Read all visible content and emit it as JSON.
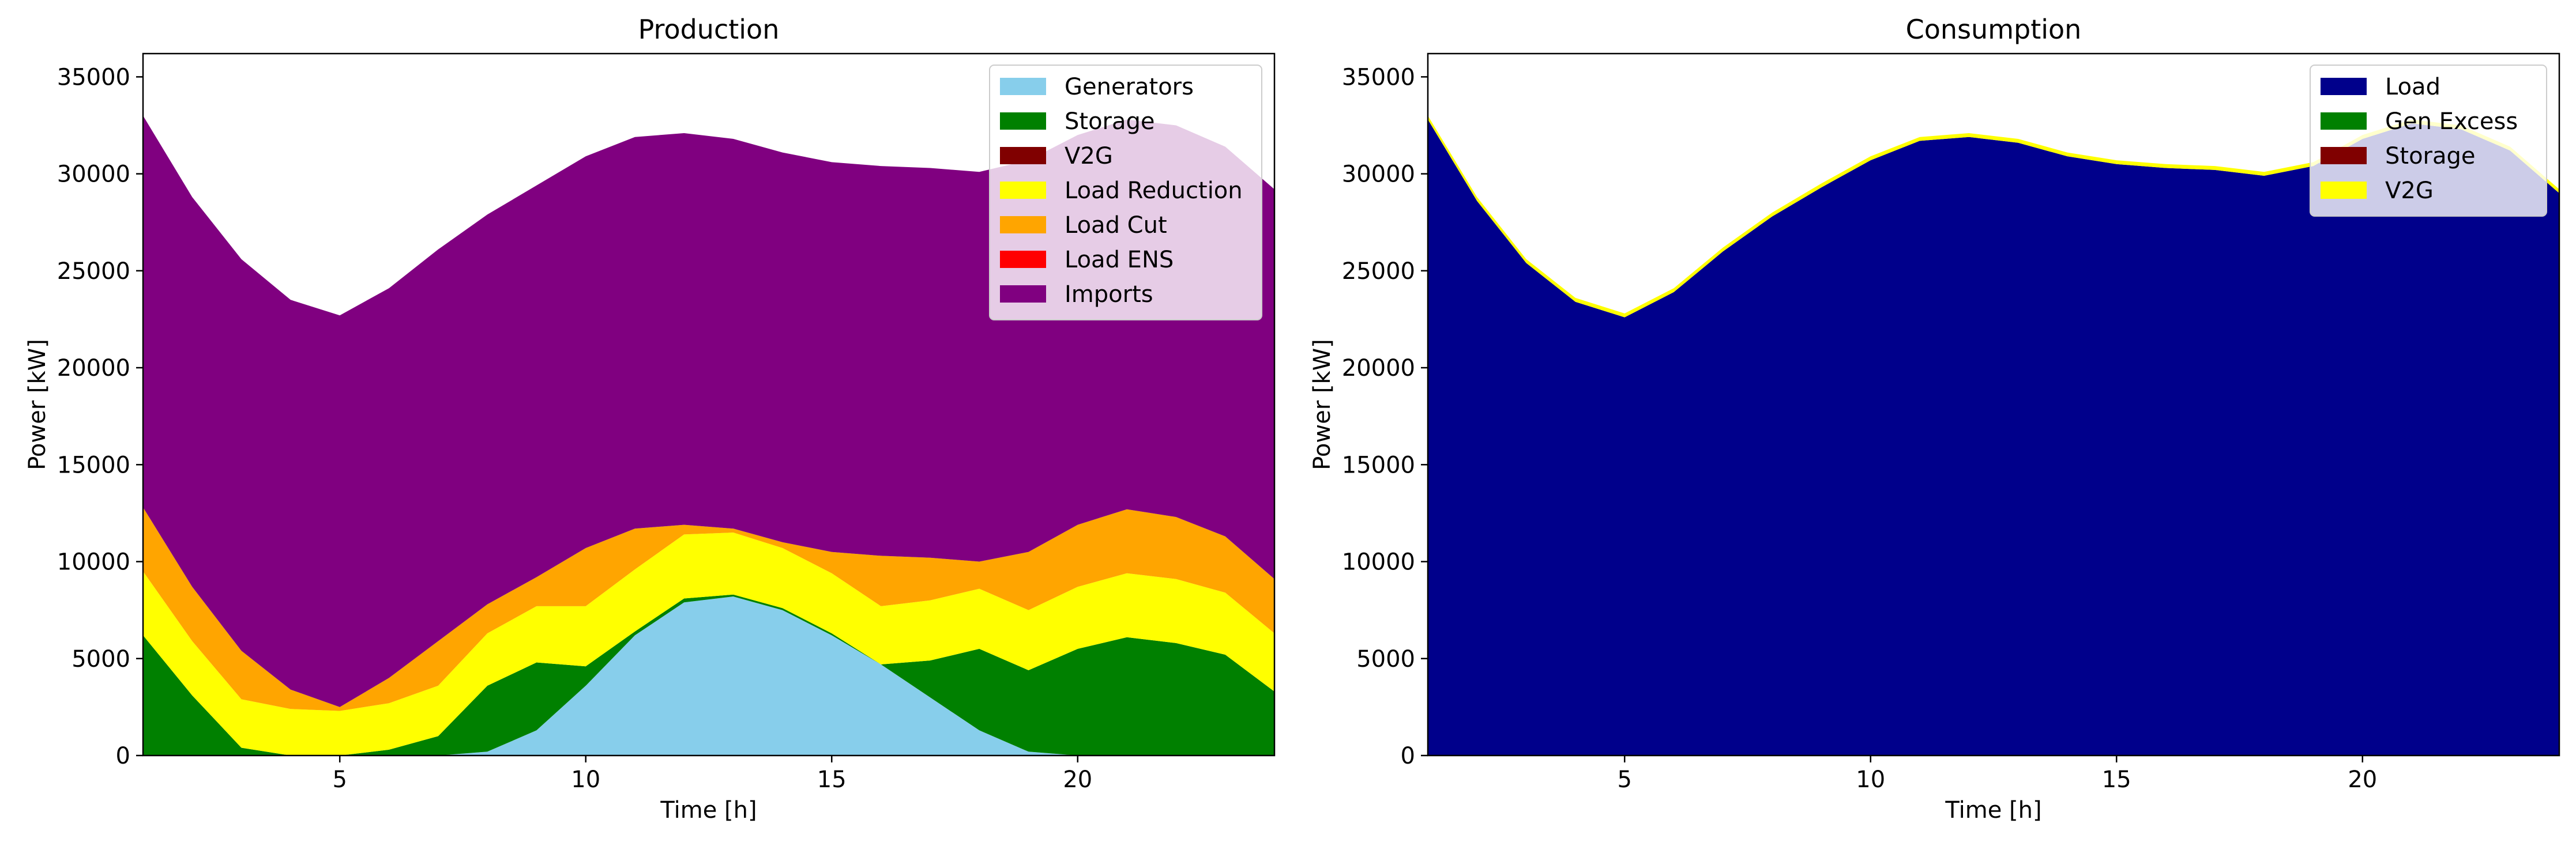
{
  "chart_data": [
    {
      "type": "area",
      "stacked": true,
      "title": "Production",
      "xlabel": "Time [h]",
      "ylabel": "Power [kW]",
      "xlim": [
        1,
        24
      ],
      "ylim": [
        0,
        36200
      ],
      "xticks": [
        5,
        10,
        15,
        20
      ],
      "yticks": [
        0,
        5000,
        10000,
        15000,
        20000,
        25000,
        30000,
        35000
      ],
      "grid": false,
      "legend_position": "top-right",
      "x": [
        1,
        2,
        3,
        4,
        5,
        6,
        7,
        8,
        9,
        10,
        11,
        12,
        13,
        14,
        15,
        16,
        17,
        18,
        19,
        20,
        21,
        22,
        23,
        24
      ],
      "series": [
        {
          "name": "Generators",
          "color": "#87ceeb",
          "values": [
            0,
            0,
            0,
            0,
            0,
            0,
            0,
            200,
            1300,
            3600,
            6200,
            7900,
            8200,
            7500,
            6200,
            4700,
            3000,
            1300,
            200,
            0,
            0,
            0,
            0,
            0
          ]
        },
        {
          "name": "Storage",
          "color": "#008000",
          "values": [
            6200,
            3100,
            400,
            0,
            0,
            300,
            1000,
            3400,
            3500,
            1000,
            200,
            200,
            100,
            100,
            100,
            0,
            1900,
            4200,
            4200,
            5500,
            6100,
            5800,
            5200,
            3300
          ]
        },
        {
          "name": "V2G",
          "color": "#800000",
          "values": [
            0,
            0,
            0,
            0,
            0,
            0,
            0,
            0,
            0,
            0,
            0,
            0,
            0,
            0,
            0,
            0,
            0,
            0,
            0,
            0,
            0,
            0,
            0,
            0
          ]
        },
        {
          "name": "Load Reduction",
          "color": "#ffff00",
          "values": [
            3300,
            2800,
            2500,
            2400,
            2300,
            2400,
            2600,
            2700,
            2900,
            3100,
            3200,
            3300,
            3200,
            3100,
            3100,
            3000,
            3100,
            3100,
            3100,
            3200,
            3300,
            3300,
            3200,
            3000
          ]
        },
        {
          "name": "Load Cut",
          "color": "#ffa500",
          "values": [
            3300,
            2800,
            2500,
            1000,
            200,
            1300,
            2300,
            1500,
            1500,
            3000,
            2100,
            500,
            200,
            300,
            1100,
            2600,
            2200,
            1400,
            3000,
            3200,
            3300,
            3200,
            2900,
            2800
          ]
        },
        {
          "name": "Load ENS",
          "color": "#ff0000",
          "values": [
            0,
            0,
            0,
            0,
            0,
            0,
            0,
            0,
            0,
            0,
            0,
            0,
            0,
            0,
            0,
            0,
            0,
            0,
            0,
            0,
            0,
            0,
            0,
            0
          ]
        },
        {
          "name": "Imports",
          "color": "#800080",
          "values": [
            20200,
            20100,
            20200,
            20100,
            20200,
            20100,
            20200,
            20100,
            20200,
            20200,
            20200,
            20200,
            20100,
            20100,
            20100,
            20100,
            20100,
            20100,
            20200,
            20100,
            20100,
            20200,
            20100,
            20100
          ]
        }
      ]
    },
    {
      "type": "area",
      "stacked": true,
      "title": "Consumption",
      "xlabel": "Time [h]",
      "ylabel": "Power [kW]",
      "xlim": [
        1,
        24
      ],
      "ylim": [
        0,
        36200
      ],
      "xticks": [
        5,
        10,
        15,
        20
      ],
      "yticks": [
        0,
        5000,
        10000,
        15000,
        20000,
        25000,
        30000,
        35000
      ],
      "grid": false,
      "legend_position": "top-right",
      "x": [
        1,
        2,
        3,
        4,
        5,
        6,
        7,
        8,
        9,
        10,
        11,
        12,
        13,
        14,
        15,
        16,
        17,
        18,
        19,
        20,
        21,
        22,
        23,
        24
      ],
      "series": [
        {
          "name": "Load",
          "color": "#00008b",
          "values": [
            32800,
            28600,
            25400,
            23400,
            22600,
            23900,
            26000,
            27800,
            29300,
            30700,
            31700,
            31900,
            31600,
            30900,
            30500,
            30300,
            30200,
            29900,
            30400,
            31800,
            32600,
            32300,
            31200,
            29000
          ]
        },
        {
          "name": "Gen Excess",
          "color": "#008000",
          "values": [
            0,
            0,
            0,
            0,
            0,
            0,
            0,
            0,
            0,
            0,
            0,
            0,
            0,
            0,
            0,
            0,
            0,
            0,
            0,
            0,
            0,
            0,
            0,
            0
          ]
        },
        {
          "name": "Storage",
          "color": "#800000",
          "values": [
            0,
            0,
            0,
            0,
            0,
            0,
            0,
            0,
            0,
            0,
            0,
            0,
            0,
            0,
            0,
            0,
            0,
            0,
            0,
            0,
            0,
            0,
            0,
            0
          ]
        },
        {
          "name": "V2G",
          "color": "#ffff00",
          "values": [
            200,
            200,
            200,
            200,
            200,
            200,
            200,
            200,
            200,
            200,
            200,
            200,
            200,
            200,
            200,
            200,
            200,
            200,
            200,
            200,
            200,
            200,
            200,
            200
          ]
        }
      ]
    }
  ]
}
